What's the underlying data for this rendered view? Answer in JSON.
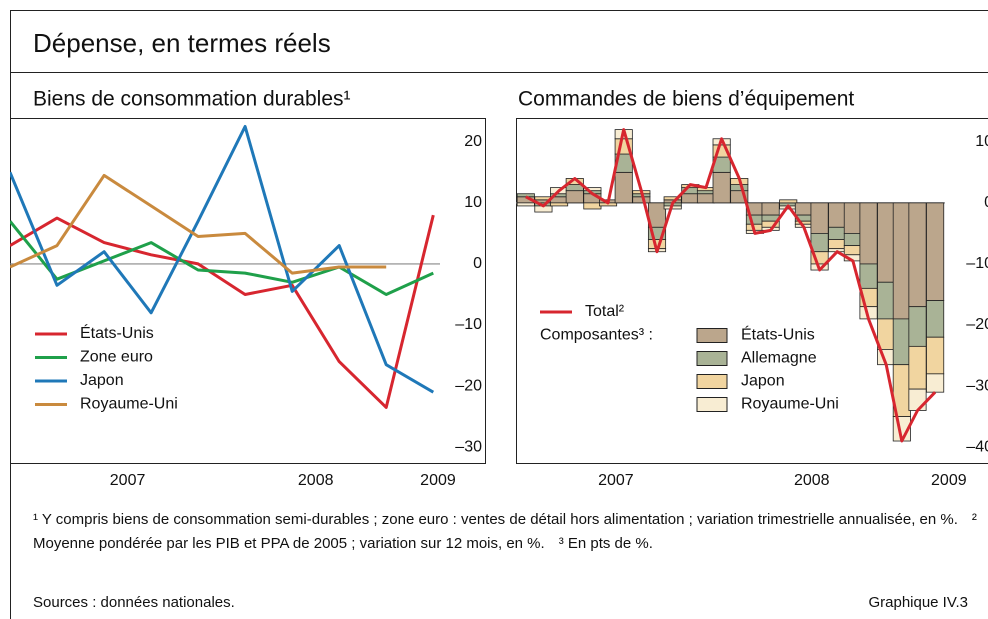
{
  "title": "Dépense, en termes réels",
  "chart_data": [
    {
      "type": "line",
      "title": "Biens de consommation durables¹",
      "x": [
        2006.875,
        2007.125,
        2007.375,
        2007.625,
        2007.875,
        2008.125,
        2008.375,
        2008.625,
        2008.875,
        2009.125
      ],
      "xlim": [
        2006.875,
        2009.4
      ],
      "xticks": [
        {
          "value": 2007.5,
          "label": "2007"
        },
        {
          "value": 2008.5,
          "label": "2008"
        },
        {
          "value": 2009.15,
          "label": "2009"
        }
      ],
      "ylim": [
        -32.6,
        23.9
      ],
      "yticks": [
        {
          "value": -30,
          "label": "–30"
        },
        {
          "value": -20,
          "label": "–20"
        },
        {
          "value": -10,
          "label": "–10"
        },
        0,
        10,
        20
      ],
      "zero_line": true,
      "legend": "lower-left",
      "series": [
        {
          "name": "États-Unis",
          "color": "#d7262f",
          "values": [
            3,
            7.5,
            3.5,
            1.5,
            0,
            -5,
            -3.5,
            -16,
            -23.5,
            8
          ]
        },
        {
          "name": "Zone euro",
          "color": "#1fa04a",
          "values": [
            7,
            -2.5,
            0.5,
            3.5,
            -1,
            -1.5,
            -3,
            -0.5,
            -5,
            -1.5
          ]
        },
        {
          "name": "Japon",
          "color": "#1f78b8",
          "values": [
            15,
            -3.5,
            2,
            -8,
            7,
            22.5,
            -4.5,
            3,
            -16.5,
            -21
          ]
        },
        {
          "name": "Royaume-Uni",
          "color": "#c98a3e",
          "values": [
            -0.5,
            3,
            14.5,
            9.5,
            4.5,
            5,
            -1.5,
            -0.5,
            -0.5,
            null
          ]
        }
      ]
    },
    {
      "type": "bar",
      "stacked": true,
      "title": "Commandes de biens d’équipement",
      "x": [
        2007.04,
        2007.13,
        2007.21,
        2007.29,
        2007.38,
        2007.46,
        2007.54,
        2007.63,
        2007.71,
        2007.79,
        2007.88,
        2007.96,
        2008.04,
        2008.13,
        2008.21,
        2008.29,
        2008.38,
        2008.46,
        2008.54,
        2008.63,
        2008.71,
        2008.79,
        2008.88,
        2008.96,
        2009.04,
        2009.13
      ],
      "xlim": [
        2006.99,
        2009.4
      ],
      "xticks": [
        {
          "value": 2007.5,
          "label": "2007"
        },
        {
          "value": 2008.5,
          "label": "2008"
        },
        {
          "value": 2009.2,
          "label": "2009"
        }
      ],
      "ylim": [
        -42.6,
        13.9
      ],
      "yticks": [
        {
          "value": -40,
          "label": "–40"
        },
        {
          "value": -30,
          "label": "–30"
        },
        {
          "value": -20,
          "label": "–20"
        },
        {
          "value": -10,
          "label": "–10"
        },
        0,
        10
      ],
      "zero_line": true,
      "legend": "lower-left",
      "legend_group_label": "Composantes³ :",
      "series": [
        {
          "name": "Total²",
          "type": "line",
          "color": "#d7262f",
          "values": [
            1,
            -0.5,
            2,
            4,
            1.5,
            0,
            12,
            2,
            -8,
            0,
            3,
            2.5,
            10.5,
            4,
            -5,
            -4.5,
            -0.5,
            -4,
            -11,
            -8,
            -9.5,
            -19,
            -26.5,
            -39,
            -34,
            -31
          ]
        },
        {
          "name": "États-Unis",
          "color": "#bba68c",
          "values": [
            1,
            0.5,
            1,
            2,
            1.5,
            0.5,
            5,
            1,
            -4,
            0.5,
            1.5,
            1.5,
            5,
            2,
            -2,
            -2,
            0,
            -2,
            -5,
            -4,
            -5,
            -10,
            -13,
            -19,
            -17,
            -16
          ]
        },
        {
          "name": "Allemagne",
          "color": "#a9b396",
          "values": [
            0.5,
            -0.5,
            0.5,
            1,
            0.5,
            0,
            3,
            0.5,
            -2,
            -0.5,
            1,
            0.5,
            2.5,
            1,
            -1.5,
            -1,
            -0.5,
            -1,
            -3,
            -2,
            -2,
            -4,
            -6,
            -7.5,
            -6.5,
            -6
          ]
        },
        {
          "name": "Japon",
          "color": "#f1d5a0",
          "values": [
            0,
            0.5,
            -0.5,
            1,
            -1,
            -0.5,
            2.5,
            0.5,
            -1.5,
            0.5,
            0.5,
            0.5,
            2,
            1,
            -1,
            -1,
            0.5,
            -0.5,
            -2,
            -1.5,
            -1.5,
            -3,
            -5,
            -8.5,
            -7,
            -6
          ]
        },
        {
          "name": "Royaume-Uni",
          "color": "#f8edd3",
          "values": [
            -0.5,
            -1,
            1,
            0,
            0.5,
            0,
            1.5,
            0,
            -0.5,
            -0.5,
            0,
            0,
            1,
            0,
            -0.5,
            -0.5,
            -0.5,
            -0.5,
            -1,
            -0.5,
            -1,
            -2,
            -2.5,
            -4,
            -3.5,
            -3
          ]
        }
      ]
    }
  ],
  "footnotes": [
    "¹ Y compris biens de consommation semi-durables ; zone euro : ventes de détail hors alimentation ; variation trimestrielle annualisée, en %.",
    "² Moyenne pondérée par les PIB et PPA de 2005 ; variation sur 12 mois, en %.",
    "³ En pts de %."
  ],
  "source": "Sources : données nationales.",
  "label": "Graphique IV.3"
}
